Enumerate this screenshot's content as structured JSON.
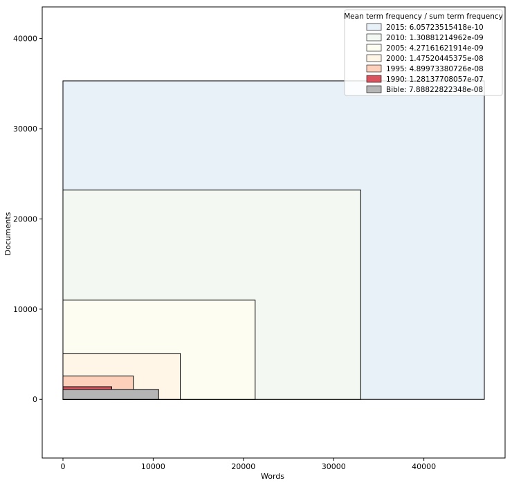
{
  "chart_data": {
    "type": "nested-rectangles",
    "xlabel": "Words",
    "ylabel": "Documents",
    "xlim": [
      -2300,
      49000
    ],
    "ylim": [
      -6500,
      43500
    ],
    "xticks": [
      0,
      10000,
      20000,
      30000,
      40000
    ],
    "xtick_labels": [
      "0",
      "10000",
      "20000",
      "30000",
      "40000"
    ],
    "yticks": [
      0,
      10000,
      20000,
      30000,
      40000
    ],
    "ytick_labels": [
      "0",
      "10000",
      "20000",
      "30000",
      "40000"
    ],
    "grid": false,
    "legend": {
      "title": "Mean term frequency / sum term frequency",
      "placement": "top-right"
    },
    "series": [
      {
        "name": "2015",
        "words": 46700,
        "documents": 35300,
        "label": "2015: 6.05723515418e-10",
        "color": "#e8f0f8"
      },
      {
        "name": "2010",
        "words": 33000,
        "documents": 23200,
        "label": "2010: 1.30881214962e-09",
        "color": "#f3f8f2"
      },
      {
        "name": "2005",
        "words": 21300,
        "documents": 11000,
        "label": "2005: 4.27161621914e-09",
        "color": "#fdfdf2"
      },
      {
        "name": "2000",
        "words": 13000,
        "documents": 5100,
        "label": "2000: 1.47520445375e-08",
        "color": "#fff6e8"
      },
      {
        "name": "1995",
        "words": 7800,
        "documents": 2600,
        "label": "1995: 4.89973380726e-08",
        "color": "#fdd0bc"
      },
      {
        "name": "1990",
        "words": 5400,
        "documents": 1400,
        "label": "1990: 1.28137708057e-07",
        "color": "#d9535f"
      },
      {
        "name": "Bible",
        "words": 10600,
        "documents": 1100,
        "label": "Bible: 7.88822822348e-08",
        "color": "#b5b5b5"
      }
    ]
  }
}
